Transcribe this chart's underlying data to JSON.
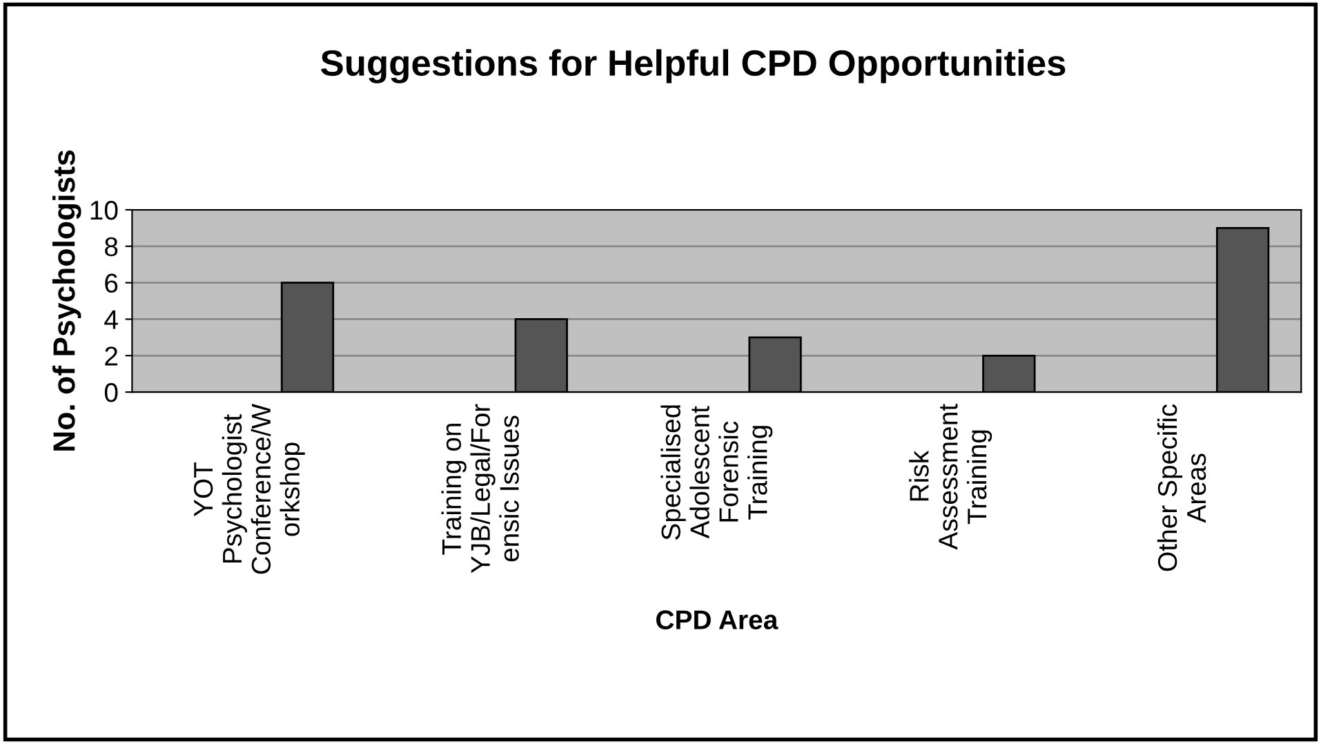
{
  "chart_data": {
    "type": "bar",
    "title": "Suggestions for Helpful CPD Opportunities",
    "xlabel": "CPD Area",
    "ylabel": "No. of Psychologists",
    "categories": [
      "YOT\nPsychologist\nConference/W\norkshop",
      "Training on\nYJB/Legal/For\nensic Issues",
      "Specialised\nAdolescent\nForensic\nTraining",
      "Risk\nAssessment\nTraining",
      "Other Specific\nAreas"
    ],
    "values": [
      6,
      4,
      3,
      2,
      9
    ],
    "color": "#555555",
    "ylim": [
      0,
      10
    ],
    "yticks": [
      0,
      2,
      4,
      6,
      8,
      10
    ],
    "grid": "y"
  }
}
